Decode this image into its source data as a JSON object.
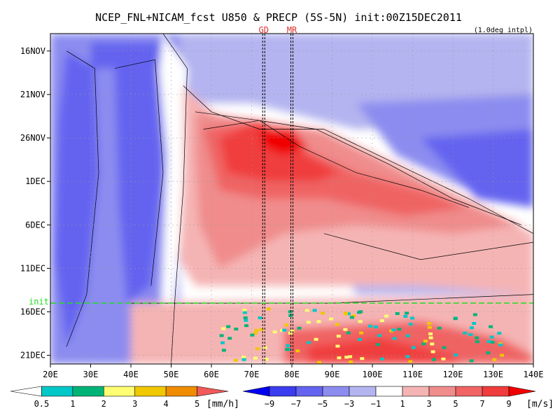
{
  "chart_data": {
    "type": "heatmap",
    "title": "NCEP_FNL+NICAM_fcst U850 & PRECP (5S-5N) init:00Z15DEC2011",
    "subtitle": "(1.0deg intpl)",
    "x_tick_labels": [
      "20E",
      "30E",
      "40E",
      "50E",
      "60E",
      "70E",
      "80E",
      "90E",
      "100E",
      "110E",
      "120E",
      "130E",
      "140E"
    ],
    "x_range": [
      20,
      140
    ],
    "y_tick_labels": [
      "16NOV",
      "21NOV",
      "26NOV",
      "1DEC",
      "6DEC",
      "11DEC",
      "16DEC",
      "21DEC"
    ],
    "y_range": [
      "14NOV2011",
      "22DEC2011"
    ],
    "y_tick_days": [
      16,
      21,
      26,
      31,
      36,
      41,
      46,
      51
    ],
    "y_range_days": [
      14,
      52
    ],
    "init_label": "init",
    "init_day": 45,
    "reference_lines": [
      {
        "label": "GD",
        "x": 73
      },
      {
        "label": "MR",
        "x": 80
      }
    ],
    "precip_colorbar": {
      "levels": [
        "0.5",
        "1",
        "2",
        "3",
        "4",
        "5"
      ],
      "unit": "[mm/h]",
      "colors": [
        "#ffffff",
        "#00c8c8",
        "#00b478",
        "#ffff73",
        "#f0c800",
        "#f08c00",
        "#f05a5a"
      ]
    },
    "wind_colorbar": {
      "levels": [
        "−9",
        "−7",
        "−5",
        "−3",
        "−1",
        "1",
        "3",
        "5",
        "7",
        "9"
      ],
      "unit": "[m/s]",
      "colors": [
        "#0000f0",
        "#3c3cf0",
        "#6464f0",
        "#8c8cf0",
        "#b4b4f0",
        "#ffffff",
        "#f5b4b4",
        "#f08c8c",
        "#f06464",
        "#f03c3c",
        "#f00000"
      ]
    },
    "u850_regimes": [
      {
        "region": "20E-50E, whole period",
        "u850": "easterly, about -5 to -1"
      },
      {
        "region": "50E-80E, 23NOV-14DEC",
        "u850": "westerly, about 3 to 9"
      },
      {
        "region": "80E-130E, 25NOV-8DEC",
        "u850": "westerly band spreading eastward, about 3 to 7"
      },
      {
        "region": "70E-140E, 16DEC-21DEC forecast",
        "u850": "westerly, about 3 to 7 with precip spots"
      },
      {
        "region": "90E-140E, 16NOV-25NOV",
        "u850": "easterly, about -3 to -1"
      }
    ]
  }
}
